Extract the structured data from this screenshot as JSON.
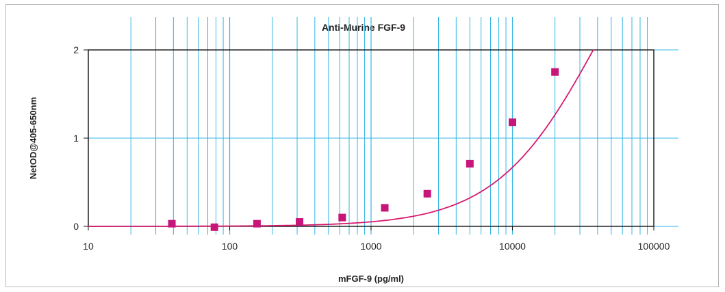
{
  "chart_data": {
    "type": "scatter",
    "title": "Anti-Murine FGF-9",
    "xlabel": "mFGF-9 (pg/ml)",
    "ylabel": "NetOD@405-650nm",
    "x_scale": "log",
    "xlim": [
      10,
      100000
    ],
    "ylim": [
      0,
      2
    ],
    "x_ticks": [
      "10",
      "100",
      "1000",
      "10000",
      "100000"
    ],
    "y_ticks": [
      "0",
      "1",
      "2"
    ],
    "grid": true,
    "series": [
      {
        "x": [
          39,
          78,
          156,
          312,
          625,
          1250,
          2500,
          5000,
          10000,
          20000
        ],
        "y": [
          0.03,
          -0.01,
          0.03,
          0.05,
          0.1,
          0.21,
          0.37,
          0.71,
          1.18,
          1.75
        ]
      }
    ],
    "colors": {
      "marker": "#c8157a",
      "curve": "#d61a6f",
      "grid": "#33b5e5",
      "axis": "#111111"
    }
  }
}
